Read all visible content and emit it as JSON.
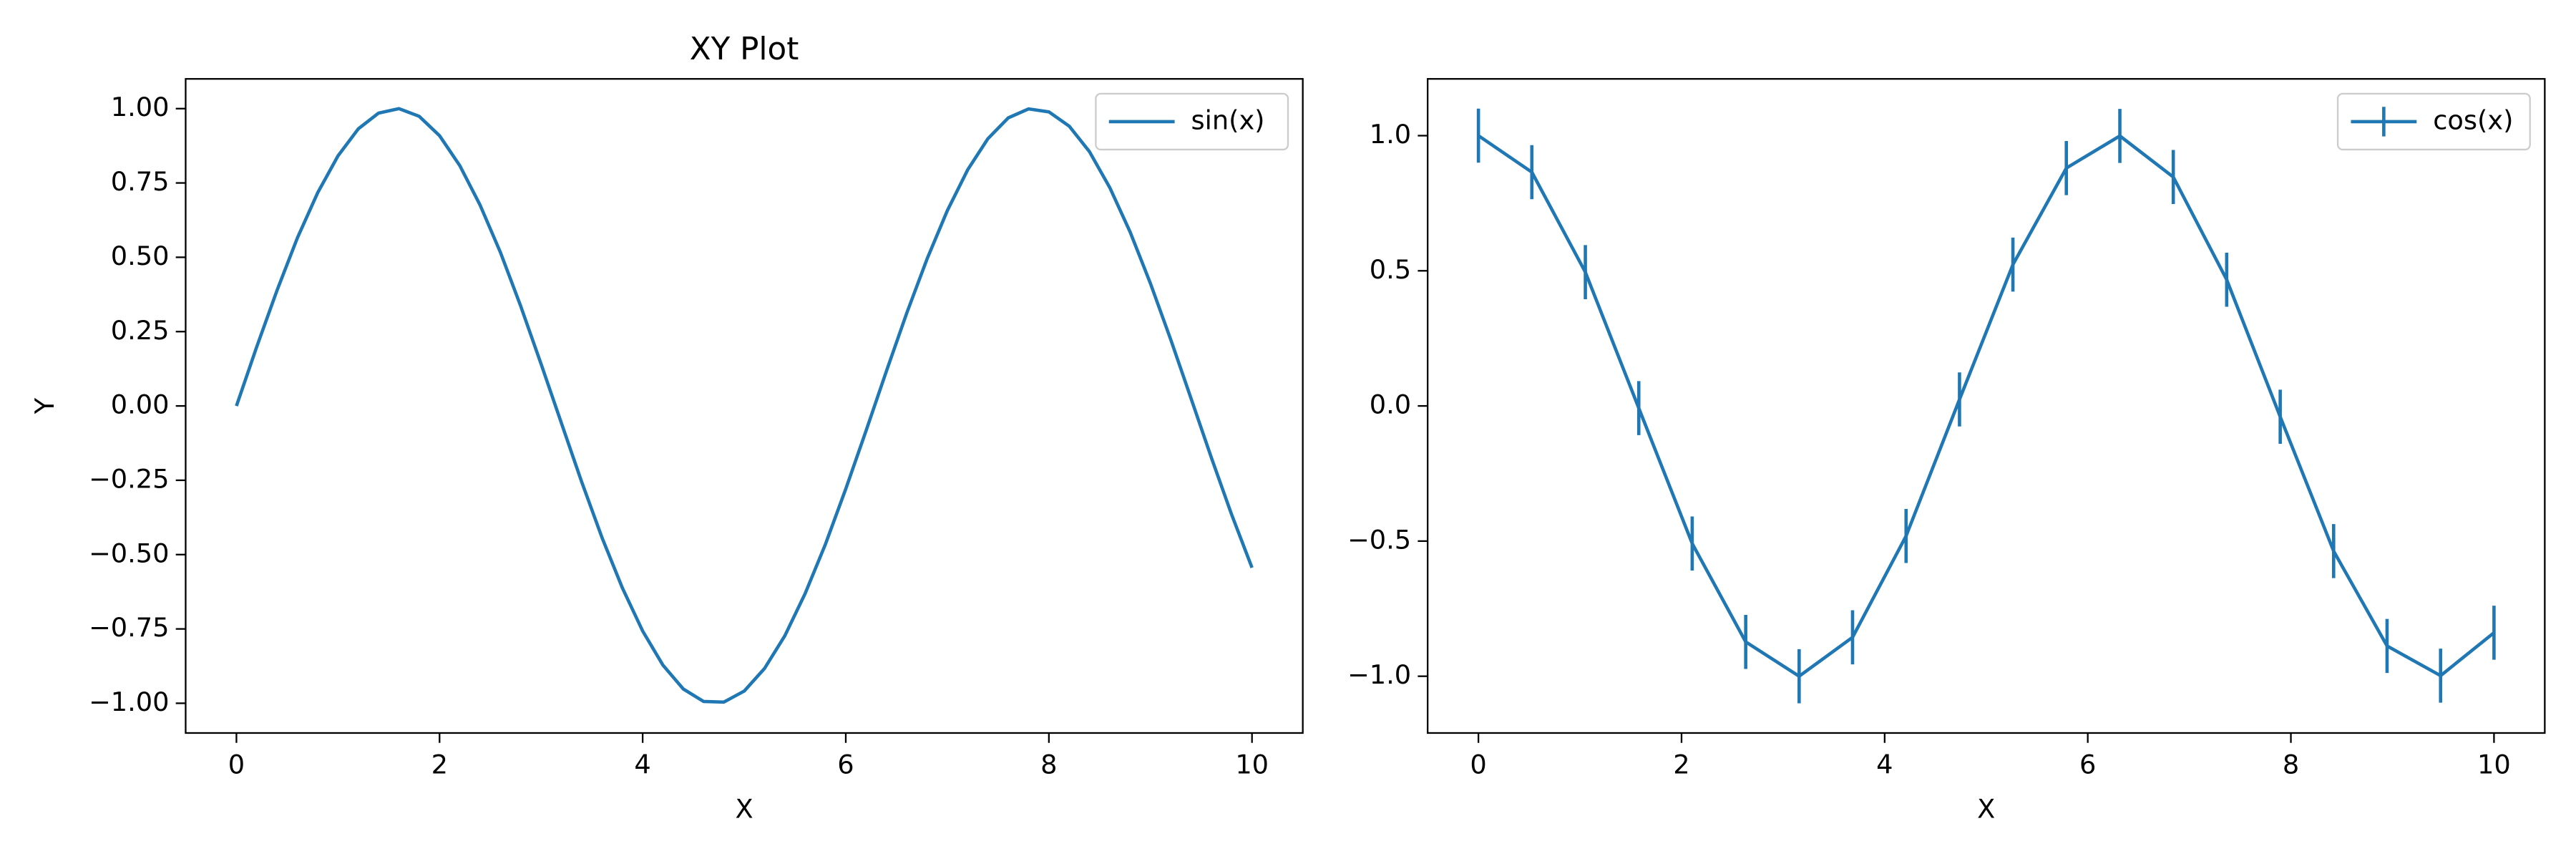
{
  "chart_data": [
    {
      "type": "line",
      "title": "XY Plot",
      "xlabel": "X",
      "ylabel": "Y",
      "x": [
        0,
        0.2,
        0.4,
        0.6,
        0.8,
        1.0,
        1.2,
        1.4,
        1.6,
        1.8,
        2.0,
        2.2,
        2.4,
        2.6,
        2.8,
        3.0,
        3.2,
        3.4,
        3.6,
        3.8,
        4.0,
        4.2,
        4.4,
        4.6,
        4.8,
        5.0,
        5.2,
        5.4,
        5.6,
        5.8,
        6.0,
        6.2,
        6.4,
        6.6,
        6.8,
        7.0,
        7.2,
        7.4,
        7.6,
        7.8,
        8.0,
        8.2,
        8.4,
        8.6,
        8.8,
        9.0,
        9.2,
        9.4,
        9.6,
        9.8,
        10.0
      ],
      "series": [
        {
          "name": "sin(x)",
          "color": "#1f77b4",
          "values": [
            0,
            0.199,
            0.389,
            0.565,
            0.717,
            0.841,
            0.932,
            0.985,
            1.0,
            0.974,
            0.909,
            0.808,
            0.675,
            0.516,
            0.335,
            0.141,
            -0.058,
            -0.256,
            -0.443,
            -0.612,
            -0.757,
            -0.872,
            -0.952,
            -0.994,
            -0.996,
            -0.959,
            -0.883,
            -0.773,
            -0.631,
            -0.465,
            -0.279,
            -0.083,
            0.117,
            0.312,
            0.494,
            0.657,
            0.794,
            0.899,
            0.969,
            0.999,
            0.989,
            0.941,
            0.855,
            0.734,
            0.585,
            0.412,
            0.223,
            0.025,
            -0.174,
            -0.366,
            -0.544
          ]
        }
      ],
      "xlim": [
        -0.5,
        10.5
      ],
      "ylim": [
        -1.1,
        1.1
      ],
      "xticks": [
        0,
        2,
        4,
        6,
        8,
        10
      ],
      "yticks": [
        {
          "value": -1,
          "label": "−1.00"
        },
        {
          "value": -0.75,
          "label": "−0.75"
        },
        {
          "value": -0.5,
          "label": "−0.50"
        },
        {
          "value": -0.25,
          "label": "−0.25"
        },
        {
          "value": 0,
          "label": "0.00"
        },
        {
          "value": 0.25,
          "label": "0.25"
        },
        {
          "value": 0.5,
          "label": "0.50"
        },
        {
          "value": 0.75,
          "label": "0.75"
        },
        {
          "value": 1,
          "label": "1.00"
        }
      ],
      "legend": "upper right"
    },
    {
      "type": "errorbar",
      "xlabel": "X",
      "x": [
        0,
        0.526,
        1.053,
        1.579,
        2.105,
        2.632,
        3.158,
        3.684,
        4.211,
        4.737,
        5.263,
        5.789,
        6.316,
        6.842,
        7.368,
        7.895,
        8.421,
        8.947,
        9.474,
        10.0
      ],
      "series": [
        {
          "name": "cos(x)",
          "color": "#1f77b4",
          "values": [
            1.0,
            0.865,
            0.495,
            -0.008,
            -0.509,
            -0.873,
            -1.0,
            -0.856,
            -0.481,
            0.024,
            0.523,
            0.88,
            0.999,
            0.847,
            0.467,
            -0.04,
            -0.537,
            -0.888,
            -0.998,
            -0.839
          ],
          "errors": [
            0.1,
            0.1,
            0.1,
            0.1,
            0.1,
            0.1,
            0.1,
            0.1,
            0.1,
            0.1,
            0.1,
            0.1,
            0.1,
            0.1,
            0.1,
            0.1,
            0.1,
            0.1,
            0.1,
            0.1
          ]
        }
      ],
      "xlim": [
        -0.5,
        10.5
      ],
      "ylim": [
        -1.21,
        1.21
      ],
      "xticks": [
        0,
        2,
        4,
        6,
        8,
        10
      ],
      "yticks": [
        {
          "value": -1,
          "label": "−1.0"
        },
        {
          "value": -0.5,
          "label": "−0.5"
        },
        {
          "value": 0,
          "label": "0.0"
        },
        {
          "value": 0.5,
          "label": "0.5"
        },
        {
          "value": 1,
          "label": "1.0"
        }
      ],
      "legend": "upper right"
    }
  ]
}
